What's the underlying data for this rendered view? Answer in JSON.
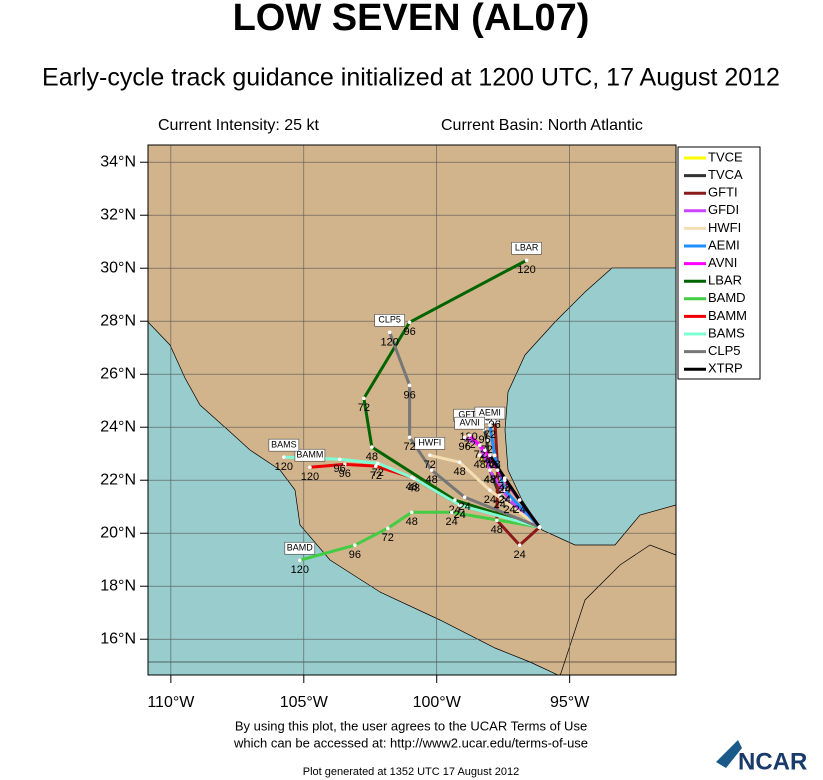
{
  "chart_data": {
    "type": "track-map",
    "title": "LOW SEVEN (AL07)",
    "subtitle": "Early-cycle track guidance initialized at 1200 UTC, 17 August 2012",
    "info_left": "Current Intensity: 25 kt",
    "info_right": "Current Basin: North Atlantic",
    "footer": [
      "By using this plot, the user agrees to the UCAR Terms of Use",
      "which can be accessed at: http://www2.ucar.edu/terms-of-use"
    ],
    "generated": "Plot generated at 1352 UTC   17 August 2012",
    "logo": "NCAR",
    "xlim": [
      -110.86,
      -91.0
    ],
    "ylim": [
      14.65,
      34.65
    ],
    "xticks": [
      {
        "value": -110,
        "label": "110°W"
      },
      {
        "value": -105,
        "label": "105°W"
      },
      {
        "value": -100,
        "label": "100°W"
      },
      {
        "value": -95,
        "label": "95°W"
      }
    ],
    "yticks": [
      {
        "value": 16,
        "label": "16°N"
      },
      {
        "value": 18,
        "label": "18°N"
      },
      {
        "value": 20,
        "label": "20°N"
      },
      {
        "value": 22,
        "label": "22°N"
      },
      {
        "value": 24,
        "label": "24°N"
      },
      {
        "value": 26,
        "label": "26°N"
      },
      {
        "value": 28,
        "label": "28°N"
      },
      {
        "value": 30,
        "label": "30°N"
      },
      {
        "value": 32,
        "label": "32°N"
      },
      {
        "value": 34,
        "label": "34°N"
      }
    ],
    "grid": true,
    "legend": "right",
    "series": [
      {
        "name": "TVCE",
        "color": "#ffff00",
        "end_box": false,
        "x": [
          -96.13,
          -97.44,
          -98.38
        ],
        "y": [
          20.23,
          21.62,
          22.94
        ],
        "hour_labels": [
          null,
          "24",
          "48"
        ]
      },
      {
        "name": "TVCA",
        "color": "#333333",
        "end_box": true,
        "x": [
          -96.13,
          -97.63,
          -98.0,
          -98.12,
          -98.2
        ],
        "y": [
          20.23,
          21.43,
          22.38,
          23.51,
          23.9
        ],
        "hour_labels": [
          null,
          "24",
          "48",
          "72",
          "96"
        ]
      },
      {
        "name": "GFTI",
        "color": "#8b1a1a",
        "end_box": true,
        "x": [
          -96.13,
          -96.88,
          -97.74,
          -97.71,
          -97.82,
          -98.8
        ],
        "y": [
          20.23,
          19.55,
          20.49,
          22.38,
          24.45,
          24.0
        ],
        "hour_labels": [
          null,
          "24",
          "48",
          "72",
          "96",
          "120"
        ]
      },
      {
        "name": "GFDI",
        "color": "#cc44ff",
        "end_box": false,
        "x": [
          -96.13,
          -97.26,
          -98.0,
          -98.38,
          -98.95
        ],
        "y": [
          20.23,
          21.25,
          22.38,
          23.32,
          23.62
        ],
        "hour_labels": [
          null,
          "24",
          "48",
          "72",
          "96"
        ]
      },
      {
        "name": "HWFI",
        "color": "#f5deb3",
        "end_box": true,
        "x": [
          -96.13,
          -98.0,
          -99.14,
          -100.26
        ],
        "y": [
          20.23,
          21.62,
          22.68,
          22.94
        ],
        "hour_labels": [
          null,
          "24",
          "48",
          "72"
        ]
      },
      {
        "name": "AEMI",
        "color": "#1e90ff",
        "end_box": true,
        "x": [
          -96.13,
          -97.44,
          -97.82,
          -98.0
        ],
        "y": [
          20.23,
          21.62,
          22.94,
          24.08
        ],
        "hour_labels": [
          null,
          "24",
          "48",
          "72"
        ]
      },
      {
        "name": "AVNI",
        "color": "#ff00ff",
        "end_box": true,
        "x": [
          -96.13,
          -97.44,
          -98.19,
          -98.76
        ],
        "y": [
          20.23,
          22.0,
          23.13,
          23.7
        ],
        "hour_labels": [
          null,
          "24",
          "48",
          "72"
        ]
      },
      {
        "name": "LBAR",
        "color": "#006400",
        "end_box": true,
        "x": [
          -96.13,
          -99.32,
          -102.44,
          -102.74,
          -101.02,
          -96.62
        ],
        "y": [
          20.23,
          21.25,
          23.25,
          25.09,
          27.96,
          30.3
        ],
        "hour_labels": [
          null,
          "24",
          "48",
          "72",
          "96",
          "120"
        ]
      },
      {
        "name": "BAMD",
        "color": "#44cc44",
        "end_box": true,
        "x": [
          -96.13,
          -99.44,
          -100.94,
          -101.84,
          -103.08,
          -105.15
        ],
        "y": [
          20.23,
          20.79,
          20.79,
          20.19,
          19.55,
          18.98
        ],
        "hour_labels": [
          null,
          "24",
          "48",
          "72",
          "96",
          "120"
        ]
      },
      {
        "name": "BAMM",
        "color": "#ee0000",
        "end_box": true,
        "x": [
          -96.13,
          -99.14,
          -100.94,
          -102.29,
          -103.46,
          -104.77
        ],
        "y": [
          20.23,
          21.06,
          22.11,
          22.53,
          22.6,
          22.49
        ],
        "hour_labels": [
          null,
          "24",
          "48",
          "72",
          "96",
          "120"
        ]
      },
      {
        "name": "BAMS",
        "color": "#7fffd4",
        "end_box": true,
        "x": [
          -96.13,
          -99.14,
          -100.86,
          -102.22,
          -103.65,
          -105.75
        ],
        "y": [
          20.23,
          21.06,
          22.07,
          22.64,
          22.79,
          22.87
        ],
        "hour_labels": [
          null,
          "24",
          "48",
          "72",
          "96",
          "120"
        ]
      },
      {
        "name": "CLP5",
        "color": "#777777",
        "end_box": true,
        "x": [
          -96.13,
          -98.95,
          -100.19,
          -101.02,
          -101.02,
          -101.77
        ],
        "y": [
          20.23,
          21.36,
          22.38,
          23.62,
          25.58,
          27.58
        ],
        "hour_labels": [
          null,
          "24",
          "48",
          "72",
          "96",
          "120"
        ]
      },
      {
        "name": "XTRP",
        "color": "#000000",
        "end_box": false,
        "x": [
          -96.13,
          -96.88,
          -97.44,
          -98.0
        ],
        "y": [
          20.23,
          21.25,
          22.08,
          22.94
        ],
        "hour_labels": [
          null,
          "24",
          "48",
          "72"
        ]
      }
    ]
  }
}
